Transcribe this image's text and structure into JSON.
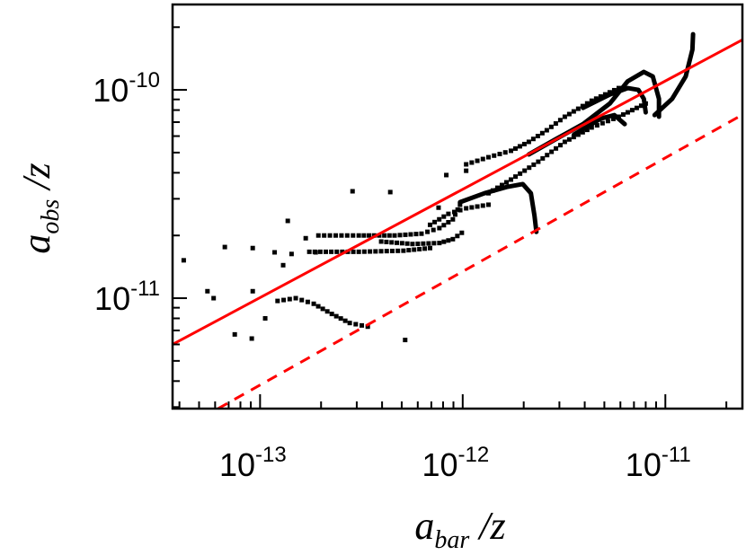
{
  "chart_data": {
    "type": "scatter",
    "xscale": "log",
    "yscale": "log",
    "xlabel": {
      "main": "a",
      "sub": "bar",
      "suffix": " /z"
    },
    "ylabel": {
      "main": "a",
      "sub": "obs",
      "suffix": " /z"
    },
    "xlim": [
      3.7e-14,
      2.4e-11
    ],
    "ylim": [
      2.95e-12,
      2.57e-10
    ],
    "grid": false,
    "x_ticks": [
      {
        "value": 1e-13,
        "base": "10",
        "exp": "-13"
      },
      {
        "value": 1e-12,
        "base": "10",
        "exp": "-12"
      },
      {
        "value": 1e-11,
        "base": "10",
        "exp": "-11"
      }
    ],
    "y_ticks": [
      {
        "value": 1e-11,
        "base": "10",
        "exp": "-11"
      },
      {
        "value": 1e-10,
        "base": "10",
        "exp": "-10"
      }
    ],
    "colors": {
      "points": "#000000",
      "relation_line": "#ff0000"
    },
    "lines": [
      {
        "style": "solid",
        "color": "#ff0000",
        "points": [
          [
            3.7e-14,
            6e-12
          ],
          [
            2.4e-11,
            1.74e-10
          ]
        ]
      },
      {
        "style": "dashed",
        "color": "#ff0000",
        "points": [
          [
            6.2e-14,
            2.95e-12
          ],
          [
            2.4e-11,
            7.6e-11
          ]
        ]
      }
    ],
    "scatter_points": [
      [
        4.2e-14,
        1.52e-11
      ],
      [
        5.5e-14,
        1.08e-11
      ],
      [
        5.9e-14,
        1e-11
      ],
      [
        6.7e-14,
        1.76e-11
      ],
      [
        7.5e-14,
        6.7e-12
      ],
      [
        9.1e-14,
        6.4e-12
      ],
      [
        9.2e-14,
        1.74e-11
      ],
      [
        9.2e-14,
        1.08e-11
      ],
      [
        1.06e-13,
        8e-12
      ],
      [
        1.18e-13,
        1.66e-11
      ],
      [
        1.3e-13,
        1.44e-11
      ],
      [
        1.37e-13,
        2.35e-11
      ],
      [
        1.43e-13,
        1.63e-11
      ],
      [
        1.68e-13,
        1.94e-11
      ],
      [
        1.88e-13,
        1.66e-11
      ],
      [
        2.86e-13,
        3.26e-11
      ],
      [
        4.39e-13,
        3.23e-11
      ],
      [
        5.2e-13,
        6.3e-12
      ],
      [
        7.6e-13,
        2.72e-11
      ],
      [
        8.3e-13,
        3.9e-11
      ],
      [
        1.04e-12,
        4.09e-11
      ]
    ],
    "curves": [
      {
        "dense": false,
        "points": [
          [
            1.22e-13,
            9.7e-12
          ],
          [
            1.5e-13,
            1e-11
          ],
          [
            1.84e-13,
            9.4e-12
          ],
          [
            2.26e-13,
            8.4e-12
          ],
          [
            2.77e-13,
            7.6e-12
          ],
          [
            3.4e-13,
            7.3e-12
          ]
        ]
      },
      {
        "dense": false,
        "points": [
          [
            1.94e-13,
            2e-11
          ],
          [
            3.07e-13,
            2e-11
          ],
          [
            4.61e-13,
            2e-11
          ],
          [
            6.26e-13,
            2.04e-11
          ],
          [
            7.67e-13,
            2.17e-11
          ],
          [
            8.94e-13,
            2.39e-11
          ],
          [
            9.7e-13,
            2.81e-11
          ]
        ]
      },
      {
        "dense": false,
        "points": [
          [
            3.96e-13,
            1.87e-11
          ],
          [
            5.65e-13,
            1.82e-11
          ],
          [
            7.67e-13,
            1.84e-11
          ],
          [
            8.94e-13,
            1.92e-11
          ],
          [
            9.9e-13,
            2.06e-11
          ]
        ]
      },
      {
        "dense": false,
        "points": [
          [
            6.9e-13,
            2.25e-11
          ],
          [
            8.5e-13,
            2.54e-11
          ],
          [
            1.04e-12,
            2.7e-11
          ],
          [
            1.34e-12,
            2.81e-11
          ]
        ]
      },
      {
        "dense": false,
        "points": [
          [
            1.75e-13,
            1.67e-11
          ],
          [
            3.07e-13,
            1.67e-11
          ],
          [
            5.1e-13,
            1.69e-11
          ],
          [
            6.9e-13,
            1.74e-11
          ]
        ]
      },
      {
        "dense": false,
        "points": [
          [
            1.04e-12,
            4.39e-11
          ],
          [
            1.34e-12,
            4.75e-11
          ],
          [
            1.73e-12,
            5.1e-11
          ],
          [
            2.12e-12,
            5.63e-11
          ],
          [
            2.6e-12,
            6.4e-11
          ],
          [
            3.19e-12,
            7.43e-11
          ],
          [
            4.33e-12,
            8.87e-11
          ],
          [
            5.89e-12,
            1.02e-10
          ]
        ]
      },
      {
        "dense": false,
        "points": [
          [
            1.34e-12,
            3.19e-11
          ],
          [
            1.73e-12,
            3.71e-11
          ],
          [
            2.36e-12,
            4.52e-11
          ],
          [
            3.19e-12,
            5.63e-11
          ],
          [
            4.33e-12,
            6.6e-11
          ],
          [
            5.89e-12,
            7.43e-11
          ],
          [
            8e-12,
            8.6e-11
          ]
        ]
      },
      {
        "dense": true,
        "points": [
          [
            9.7e-13,
            2.89e-11
          ],
          [
            1.28e-12,
            3.19e-11
          ],
          [
            1.65e-12,
            3.42e-11
          ],
          [
            1.98e-12,
            3.53e-11
          ],
          [
            2.17e-12,
            3.19e-11
          ],
          [
            2.26e-12,
            2.49e-11
          ],
          [
            2.31e-12,
            2.08e-11
          ]
        ]
      },
      {
        "dense": true,
        "points": [
          [
            2.12e-12,
            4.9e-11
          ],
          [
            2.88e-12,
            5.8e-11
          ],
          [
            3.92e-12,
            6.85e-11
          ],
          [
            5.32e-12,
            8.6e-11
          ],
          [
            6.52e-12,
            1.1e-10
          ],
          [
            7.83e-12,
            1.22e-10
          ],
          [
            8.67e-12,
            1.16e-10
          ],
          [
            9.3e-12,
            9.06e-11
          ],
          [
            9.3e-12,
            7.43e-11
          ]
        ]
      },
      {
        "dense": true,
        "points": [
          [
            8.85e-12,
            7.57e-11
          ],
          [
            1.08e-11,
            9.06e-11
          ],
          [
            1.26e-11,
            1.16e-10
          ],
          [
            1.36e-11,
            1.56e-10
          ],
          [
            1.37e-11,
            1.85e-10
          ]
        ]
      },
      {
        "dense": true,
        "points": [
          [
            3.92e-12,
            8.2e-11
          ],
          [
            5.32e-12,
            9.5e-11
          ],
          [
            6.52e-12,
            1.02e-10
          ],
          [
            7.36e-12,
            1e-10
          ],
          [
            7.83e-12,
            9.06e-11
          ],
          [
            8e-12,
            7.8e-11
          ]
        ]
      },
      {
        "dense": true,
        "points": [
          [
            3.54e-12,
            6.1e-11
          ],
          [
            4.8e-12,
            7.28e-11
          ],
          [
            5.6e-12,
            7.57e-11
          ],
          [
            6.3e-12,
            6.85e-11
          ]
        ]
      }
    ]
  }
}
